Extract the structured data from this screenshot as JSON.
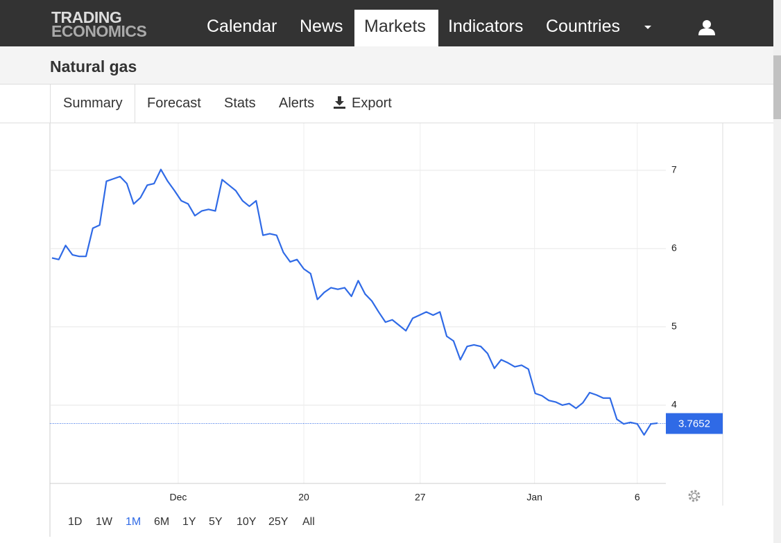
{
  "header": {
    "logo": [
      "TRADING",
      "ECONOMICS"
    ],
    "nav": [
      "Calendar",
      "News",
      "Markets",
      "Indicators",
      "Countries"
    ],
    "active_nav": "Markets"
  },
  "title": "Natural gas",
  "tabs": [
    "Summary",
    "Forecast",
    "Stats",
    "Alerts",
    "Export"
  ],
  "chart_data": {
    "type": "line",
    "color": "#2f6ae6",
    "values": [
      5.88,
      5.86,
      6.04,
      5.92,
      5.9,
      5.9,
      6.26,
      6.3,
      6.86,
      6.89,
      6.92,
      6.83,
      6.57,
      6.65,
      6.81,
      6.83,
      7.01,
      6.86,
      6.74,
      6.61,
      6.57,
      6.42,
      6.48,
      6.5,
      6.48,
      6.88,
      6.81,
      6.74,
      6.61,
      6.54,
      6.61,
      6.17,
      6.19,
      6.17,
      5.95,
      5.83,
      5.86,
      5.74,
      5.68,
      5.35,
      5.44,
      5.5,
      5.48,
      5.5,
      5.39,
      5.59,
      5.42,
      5.33,
      5.19,
      5.06,
      5.09,
      5.02,
      4.95,
      5.11,
      5.15,
      5.19,
      5.15,
      5.19,
      4.88,
      4.82,
      4.58,
      4.75,
      4.77,
      4.75,
      4.66,
      4.47,
      4.58,
      4.54,
      4.49,
      4.51,
      4.46,
      4.15,
      4.12,
      4.06,
      4.04,
      4.0,
      4.02,
      3.96,
      4.03,
      4.16,
      4.13,
      4.09,
      4.09,
      3.82,
      3.76,
      3.78,
      3.76,
      3.62,
      3.76,
      3.77
    ],
    "last_value": 3.7652,
    "xlim": [
      -0.3,
      90.2
    ],
    "xticks": [
      {
        "value": 18.55,
        "label": "Dec"
      },
      {
        "value": 37,
        "label": "20"
      },
      {
        "value": 54.1,
        "label": "27"
      },
      {
        "value": 70.9,
        "label": "Jan"
      },
      {
        "value": 86,
        "label": "6"
      }
    ],
    "ylim": [
      3,
      7.6
    ],
    "yticks": [
      4,
      5,
      6,
      7
    ],
    "grid": true
  },
  "ranges": [
    "1D",
    "1W",
    "1M",
    "6M",
    "1Y",
    "5Y",
    "10Y",
    "25Y",
    "All"
  ],
  "active_range": "1M"
}
